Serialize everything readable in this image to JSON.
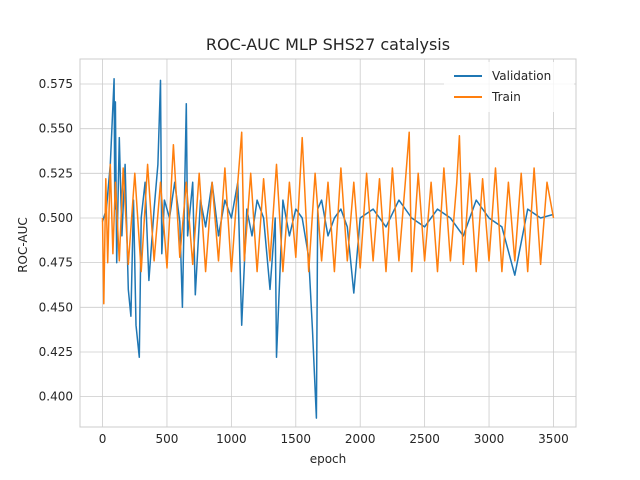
{
  "chart_data": {
    "type": "line",
    "title": "ROC-AUC MLP SHS27 catalysis",
    "xlabel": "epoch",
    "ylabel": "ROC-AUC",
    "xlim": [
      -175,
      3675
    ],
    "ylim": [
      0.383,
      0.589
    ],
    "xticks": [
      0,
      500,
      1000,
      1500,
      2000,
      2500,
      3000,
      3500
    ],
    "xtick_labels": [
      "0",
      "500",
      "1000",
      "1500",
      "2000",
      "2500",
      "3000",
      "3500"
    ],
    "yticks": [
      0.4,
      0.425,
      0.45,
      0.475,
      0.5,
      0.525,
      0.55,
      0.575
    ],
    "ytick_labels": [
      "0.400",
      "0.425",
      "0.450",
      "0.475",
      "0.500",
      "0.525",
      "0.550",
      "0.575"
    ],
    "grid": true,
    "legend_position": "top-right",
    "series": [
      {
        "name": "Validation",
        "color": "#1f77b4",
        "x": [
          0,
          30,
          60,
          90,
          95,
          100,
          110,
          130,
          150,
          175,
          200,
          220,
          240,
          260,
          285,
          300,
          330,
          360,
          400,
          430,
          450,
          460,
          480,
          520,
          560,
          600,
          620,
          650,
          660,
          700,
          720,
          760,
          800,
          850,
          900,
          950,
          1000,
          1050,
          1080,
          1120,
          1160,
          1200,
          1250,
          1300,
          1340,
          1350,
          1400,
          1450,
          1500,
          1550,
          1600,
          1630,
          1660,
          1670,
          1700,
          1750,
          1800,
          1850,
          1900,
          1950,
          2000,
          2100,
          2200,
          2300,
          2400,
          2500,
          2600,
          2700,
          2800,
          2900,
          3000,
          3100,
          3200,
          3300,
          3400,
          3500
        ],
        "y": [
          0.498,
          0.505,
          0.53,
          0.578,
          0.505,
          0.565,
          0.475,
          0.545,
          0.49,
          0.53,
          0.46,
          0.445,
          0.51,
          0.44,
          0.422,
          0.5,
          0.52,
          0.465,
          0.505,
          0.53,
          0.577,
          0.48,
          0.51,
          0.5,
          0.52,
          0.498,
          0.45,
          0.564,
          0.49,
          0.52,
          0.457,
          0.51,
          0.495,
          0.52,
          0.49,
          0.51,
          0.5,
          0.52,
          0.44,
          0.505,
          0.49,
          0.51,
          0.5,
          0.46,
          0.5,
          0.422,
          0.51,
          0.49,
          0.505,
          0.5,
          0.478,
          0.437,
          0.388,
          0.505,
          0.51,
          0.49,
          0.5,
          0.505,
          0.495,
          0.458,
          0.5,
          0.505,
          0.495,
          0.51,
          0.5,
          0.495,
          0.505,
          0.5,
          0.49,
          0.51,
          0.5,
          0.495,
          0.468,
          0.505,
          0.5,
          0.502
        ]
      },
      {
        "name": "Train",
        "color": "#ff7f0e",
        "x": [
          0,
          10,
          25,
          40,
          60,
          80,
          100,
          130,
          160,
          200,
          250,
          300,
          350,
          400,
          450,
          500,
          550,
          600,
          650,
          700,
          750,
          800,
          850,
          900,
          950,
          1000,
          1050,
          1080,
          1100,
          1150,
          1200,
          1250,
          1300,
          1350,
          1400,
          1450,
          1500,
          1550,
          1600,
          1650,
          1700,
          1750,
          1800,
          1850,
          1900,
          1950,
          2000,
          2050,
          2100,
          2150,
          2200,
          2250,
          2300,
          2350,
          2380,
          2400,
          2450,
          2500,
          2550,
          2600,
          2650,
          2700,
          2750,
          2770,
          2800,
          2850,
          2900,
          2950,
          3000,
          3050,
          3100,
          3150,
          3200,
          3250,
          3300,
          3350,
          3400,
          3450,
          3500
        ],
        "y": [
          0.5,
          0.452,
          0.522,
          0.475,
          0.53,
          0.48,
          0.52,
          0.476,
          0.528,
          0.474,
          0.525,
          0.47,
          0.53,
          0.476,
          0.52,
          0.472,
          0.541,
          0.478,
          0.52,
          0.474,
          0.525,
          0.47,
          0.52,
          0.476,
          0.528,
          0.47,
          0.52,
          0.548,
          0.476,
          0.525,
          0.47,
          0.522,
          0.476,
          0.53,
          0.47,
          0.52,
          0.478,
          0.545,
          0.47,
          0.525,
          0.476,
          0.52,
          0.47,
          0.528,
          0.476,
          0.52,
          0.472,
          0.525,
          0.476,
          0.522,
          0.47,
          0.528,
          0.476,
          0.52,
          0.548,
          0.47,
          0.525,
          0.476,
          0.52,
          0.47,
          0.528,
          0.476,
          0.52,
          0.546,
          0.474,
          0.525,
          0.47,
          0.522,
          0.476,
          0.528,
          0.47,
          0.52,
          0.476,
          0.525,
          0.47,
          0.528,
          0.474,
          0.52,
          0.5
        ]
      }
    ]
  }
}
